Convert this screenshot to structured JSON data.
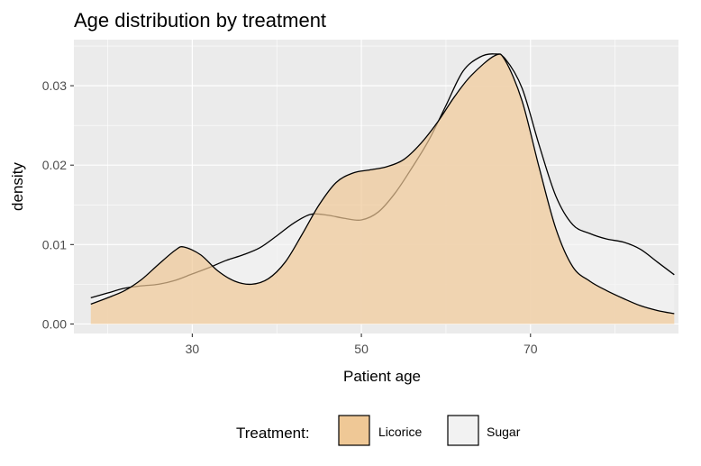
{
  "chart_data": {
    "type": "area",
    "title": "Age distribution by treatment",
    "xlabel": "Patient age",
    "ylabel": "density",
    "xlim": [
      16,
      87.5
    ],
    "ylim": [
      -0.0012,
      0.0358
    ],
    "x_ticks": [
      30,
      50,
      70
    ],
    "x_tick_labels": [
      "30",
      "50",
      "70"
    ],
    "y_ticks": [
      0,
      0.01,
      0.02,
      0.03
    ],
    "y_tick_labels": [
      "0.00",
      "0.01",
      "0.02",
      "0.03"
    ],
    "grid": true,
    "legend": {
      "title": "Treatment:",
      "position": "bottom"
    },
    "series": [
      {
        "name": "Sugar",
        "fill": "#f2f2f2",
        "x": [
          18,
          20,
          22,
          24,
          26,
          28,
          30,
          32,
          34,
          36,
          38,
          40,
          42,
          44,
          46,
          48,
          50,
          52,
          54,
          56,
          58,
          60,
          62,
          64,
          65.7,
          67,
          69,
          71,
          73,
          75,
          77,
          79,
          81,
          83,
          85,
          87
        ],
        "y": [
          0.0033,
          0.0039,
          0.0045,
          0.0048,
          0.005,
          0.0055,
          0.0063,
          0.0071,
          0.008,
          0.0087,
          0.0096,
          0.0111,
          0.0127,
          0.0138,
          0.0137,
          0.0133,
          0.0131,
          0.0141,
          0.0165,
          0.0197,
          0.0232,
          0.0275,
          0.0318,
          0.0336,
          0.034,
          0.0334,
          0.0297,
          0.0226,
          0.0161,
          0.0125,
          0.0114,
          0.0107,
          0.0103,
          0.0094,
          0.0078,
          0.0062
        ]
      },
      {
        "name": "Licorice",
        "fill": "#efc896",
        "x": [
          18,
          20,
          22,
          24,
          26,
          28,
          29,
          31,
          33,
          35,
          37,
          39,
          41,
          43,
          45,
          47,
          49,
          51,
          53,
          55,
          57,
          59,
          61,
          63,
          65.8,
          67,
          69,
          71,
          73,
          75,
          77,
          79,
          81,
          83,
          85,
          87
        ],
        "y": [
          0.0025,
          0.0033,
          0.0042,
          0.0056,
          0.0075,
          0.0093,
          0.0097,
          0.0087,
          0.0067,
          0.0054,
          0.005,
          0.0057,
          0.0078,
          0.0113,
          0.015,
          0.0178,
          0.019,
          0.0194,
          0.0198,
          0.0207,
          0.0227,
          0.0254,
          0.0286,
          0.0313,
          0.0338,
          0.0332,
          0.0281,
          0.0198,
          0.012,
          0.0072,
          0.0054,
          0.0042,
          0.0032,
          0.0023,
          0.0017,
          0.0013
        ]
      }
    ]
  }
}
